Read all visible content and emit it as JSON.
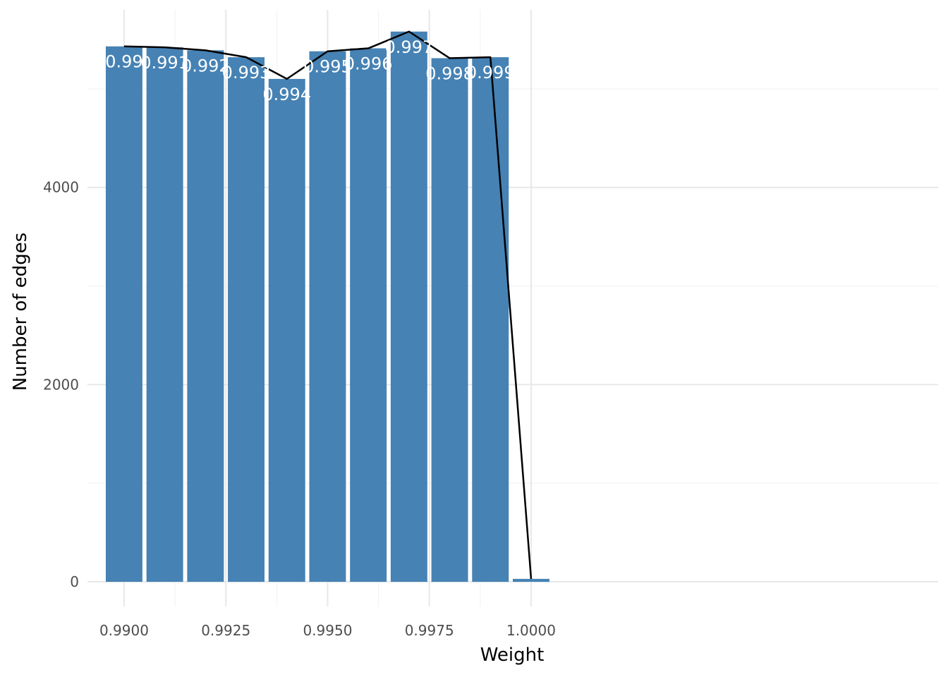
{
  "chart_data": {
    "type": "bar",
    "title": "",
    "xlabel": "Weight",
    "ylabel": "Number of edges",
    "x": [
      0.99,
      0.991,
      0.992,
      0.993,
      0.994,
      0.995,
      0.996,
      0.997,
      0.998,
      0.999,
      1.0
    ],
    "values": [
      5430,
      5420,
      5390,
      5320,
      5100,
      5380,
      5410,
      5580,
      5310,
      5320,
      30
    ],
    "bar_labels": [
      "0.99",
      "0.991",
      "0.992",
      "0.993",
      "0.994",
      "0.995",
      "0.996",
      "0.997",
      "0.998",
      "0.999",
      ""
    ],
    "bar_width": 0.0009,
    "line_overlay": {
      "x": [
        0.99,
        0.991,
        0.992,
        0.993,
        0.994,
        0.995,
        0.996,
        0.997,
        0.998,
        0.999,
        1.0
      ],
      "values": [
        5430,
        5420,
        5390,
        5320,
        5100,
        5380,
        5410,
        5580,
        5310,
        5320,
        30
      ]
    },
    "xlim": [
      0.9891,
      1.01
    ],
    "ylim": [
      -250,
      5800
    ],
    "x_ticks": [
      0.99,
      0.9925,
      0.995,
      0.9975,
      1.0
    ],
    "x_tick_labels": [
      "0.9900",
      "0.9925",
      "0.9950",
      "0.9975",
      "1.0000"
    ],
    "x_minor_ticks": [
      0.99125,
      0.99375,
      0.99625,
      0.99875
    ],
    "y_ticks": [
      0,
      2000,
      4000
    ],
    "y_tick_labels": [
      "0",
      "2000",
      "4000"
    ],
    "y_minor_ticks": [
      1000,
      3000,
      5000
    ],
    "grid": true,
    "legend": "none",
    "colors": {
      "bar": "#4682b4",
      "line": "#000000",
      "bar_label": "#ffffff",
      "grid_major": "#e8e8e8",
      "grid_minor": "#f3f3f3"
    }
  }
}
